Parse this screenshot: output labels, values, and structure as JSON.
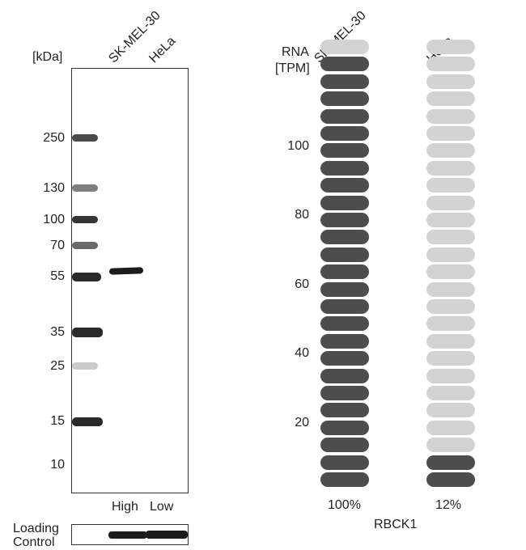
{
  "western_blot": {
    "kda_label": "[kDa]",
    "lanes": [
      "SK-MEL-30",
      "HeLa"
    ],
    "markers": [
      "250",
      "130",
      "100",
      "70",
      "55",
      "35",
      "25",
      "15",
      "10"
    ],
    "expression_labels": [
      "High",
      "Low"
    ],
    "loading_control_label_line1": "Loading",
    "loading_control_label_line2": "Control"
  },
  "rna": {
    "axis_label_line1": "RNA",
    "axis_label_line2": "[TPM]",
    "yticks": [
      "100",
      "80",
      "60",
      "40",
      "20"
    ],
    "gene": "RBCK1",
    "cell_lines": [
      {
        "name": "SK-MEL-30",
        "percent": "100%",
        "filled_units": 25,
        "total_units": 26
      },
      {
        "name": "HeLa",
        "percent": "12%",
        "filled_units": 2,
        "total_units": 26
      }
    ],
    "colors": {
      "high_dark": "#4d4d4d",
      "low_light": "#d3d3d3"
    }
  }
}
